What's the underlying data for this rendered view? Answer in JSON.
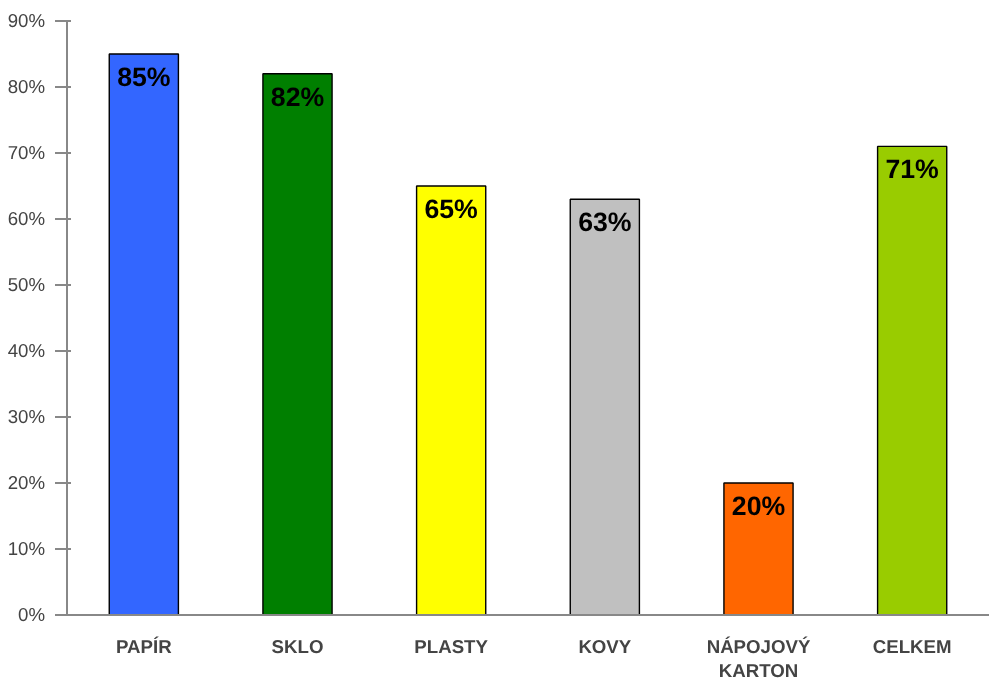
{
  "chart_data": {
    "type": "bar",
    "categories": [
      "PAPÍR",
      "SKLO",
      "PLASTY",
      "KOVY",
      "NÁPOJOVÝ KARTON",
      "CELKEM"
    ],
    "values": [
      85,
      82,
      65,
      63,
      20,
      71
    ],
    "colors": [
      "#3366ff",
      "#007f00",
      "#ffff00",
      "#c0c0c0",
      "#ff6600",
      "#99cc00"
    ],
    "value_labels": [
      "85%",
      "82%",
      "65%",
      "63%",
      "20%",
      "71%"
    ],
    "ylim": [
      0,
      90
    ],
    "yticks": [
      {
        "value": 0,
        "label": "0%"
      },
      {
        "value": 10,
        "label": "10%"
      },
      {
        "value": 20,
        "label": "20%"
      },
      {
        "value": 30,
        "label": "30%"
      },
      {
        "value": 40,
        "label": "40%"
      },
      {
        "value": 50,
        "label": "50%"
      },
      {
        "value": 60,
        "label": "60%"
      },
      {
        "value": 70,
        "label": "70%"
      },
      {
        "value": 80,
        "label": "80%"
      },
      {
        "value": 90,
        "label": "90%"
      }
    ],
    "grid": false
  }
}
